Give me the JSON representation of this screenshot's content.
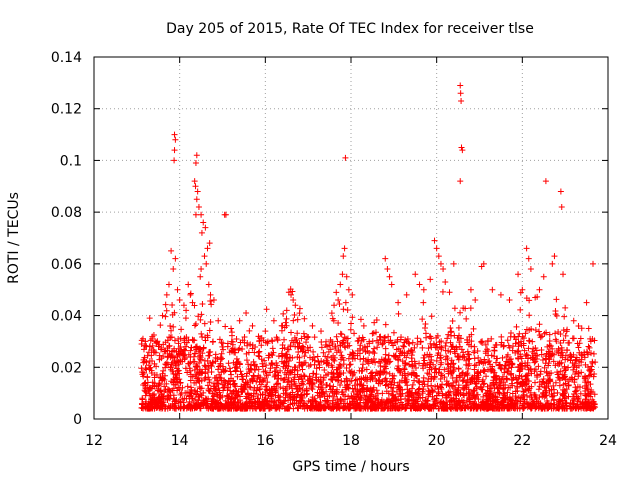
{
  "chart_data": {
    "type": "scatter",
    "title": "Day 205 of 2015, Rate Of TEC Index for receiver tlse",
    "xlabel": "GPS time / hours",
    "ylabel": "ROTI / TECUs",
    "xlim": [
      12,
      24
    ],
    "ylim": [
      0,
      0.14
    ],
    "xticks": [
      "12",
      "14",
      "16",
      "18",
      "20",
      "22",
      "24"
    ],
    "xtick_values": [
      12,
      14,
      16,
      18,
      20,
      22,
      24
    ],
    "yticks": [
      "0",
      "0.02",
      "0.04",
      "0.06",
      "0.08",
      "0.1",
      "0.12",
      "0.14"
    ],
    "ytick_values": [
      0,
      0.02,
      0.04,
      0.06,
      0.08,
      0.1,
      0.12,
      0.14
    ],
    "grid": true,
    "marker": "+",
    "color": "#ff0000",
    "x_range_of_data": [
      13.1,
      23.7
    ],
    "series": [
      {
        "name": "ROTI",
        "points": [
          [
            13.88,
            0.11
          ],
          [
            13.9,
            0.108
          ],
          [
            13.88,
            0.104
          ],
          [
            13.87,
            0.1
          ],
          [
            14.4,
            0.102
          ],
          [
            14.38,
            0.099
          ],
          [
            14.35,
            0.092
          ],
          [
            14.37,
            0.09
          ],
          [
            14.42,
            0.088
          ],
          [
            14.4,
            0.085
          ],
          [
            14.45,
            0.082
          ],
          [
            14.5,
            0.079
          ],
          [
            14.38,
            0.079
          ],
          [
            14.55,
            0.076
          ],
          [
            14.6,
            0.074
          ],
          [
            14.52,
            0.072
          ],
          [
            14.7,
            0.068
          ],
          [
            14.65,
            0.066
          ],
          [
            14.58,
            0.063
          ],
          [
            14.62,
            0.06
          ],
          [
            14.5,
            0.058
          ],
          [
            14.48,
            0.055
          ],
          [
            14.68,
            0.052
          ],
          [
            14.72,
            0.048
          ],
          [
            15.05,
            0.079
          ],
          [
            15.08,
            0.079
          ],
          [
            13.8,
            0.065
          ],
          [
            13.9,
            0.062
          ],
          [
            13.85,
            0.058
          ],
          [
            13.75,
            0.052
          ],
          [
            13.7,
            0.048
          ],
          [
            13.95,
            0.05
          ],
          [
            14.0,
            0.046
          ],
          [
            14.1,
            0.044
          ],
          [
            13.6,
            0.04
          ],
          [
            13.3,
            0.039
          ],
          [
            14.2,
            0.052
          ],
          [
            14.25,
            0.048
          ],
          [
            14.15,
            0.042
          ],
          [
            14.3,
            0.045
          ],
          [
            14.8,
            0.046
          ],
          [
            14.9,
            0.038
          ],
          [
            15.2,
            0.035
          ],
          [
            15.4,
            0.038
          ],
          [
            15.55,
            0.041
          ],
          [
            15.7,
            0.036
          ],
          [
            16.0,
            0.034
          ],
          [
            16.2,
            0.038
          ],
          [
            16.5,
            0.042
          ],
          [
            16.55,
            0.049
          ],
          [
            16.6,
            0.048
          ],
          [
            16.65,
            0.046
          ],
          [
            16.7,
            0.044
          ],
          [
            16.4,
            0.036
          ],
          [
            16.9,
            0.033
          ],
          [
            17.1,
            0.036
          ],
          [
            17.3,
            0.034
          ],
          [
            17.6,
            0.038
          ],
          [
            17.7,
            0.046
          ],
          [
            17.75,
            0.052
          ],
          [
            17.8,
            0.056
          ],
          [
            17.82,
            0.063
          ],
          [
            17.85,
            0.066
          ],
          [
            17.9,
            0.055
          ],
          [
            17.95,
            0.05
          ],
          [
            17.88,
            0.045
          ],
          [
            17.87,
            0.101
          ],
          [
            18.3,
            0.036
          ],
          [
            18.5,
            0.033
          ],
          [
            18.8,
            0.062
          ],
          [
            18.85,
            0.058
          ],
          [
            18.9,
            0.055
          ],
          [
            18.95,
            0.052
          ],
          [
            19.1,
            0.045
          ],
          [
            19.3,
            0.048
          ],
          [
            19.5,
            0.056
          ],
          [
            19.6,
            0.052
          ],
          [
            19.7,
            0.05
          ],
          [
            19.85,
            0.054
          ],
          [
            19.95,
            0.069
          ],
          [
            20.0,
            0.066
          ],
          [
            20.05,
            0.063
          ],
          [
            20.1,
            0.06
          ],
          [
            20.15,
            0.058
          ],
          [
            20.2,
            0.053
          ],
          [
            20.3,
            0.049
          ],
          [
            20.4,
            0.06
          ],
          [
            20.55,
            0.129
          ],
          [
            20.56,
            0.126
          ],
          [
            20.57,
            0.123
          ],
          [
            20.58,
            0.105
          ],
          [
            20.6,
            0.104
          ],
          [
            20.55,
            0.092
          ],
          [
            20.8,
            0.05
          ],
          [
            20.9,
            0.046
          ],
          [
            21.05,
            0.059
          ],
          [
            21.1,
            0.06
          ],
          [
            21.3,
            0.05
          ],
          [
            21.5,
            0.048
          ],
          [
            21.7,
            0.046
          ],
          [
            21.9,
            0.056
          ],
          [
            22.0,
            0.05
          ],
          [
            22.1,
            0.066
          ],
          [
            22.15,
            0.062
          ],
          [
            22.2,
            0.058
          ],
          [
            22.3,
            0.047
          ],
          [
            22.4,
            0.05
          ],
          [
            22.5,
            0.055
          ],
          [
            22.55,
            0.092
          ],
          [
            22.7,
            0.06
          ],
          [
            22.75,
            0.063
          ],
          [
            22.9,
            0.088
          ],
          [
            22.92,
            0.082
          ],
          [
            22.95,
            0.056
          ],
          [
            23.0,
            0.043
          ],
          [
            23.2,
            0.038
          ],
          [
            23.5,
            0.045
          ],
          [
            23.65,
            0.06
          ],
          [
            23.55,
            0.035
          ],
          [
            23.6,
            0.03
          ],
          [
            23.7,
            0.022
          ],
          [
            13.2,
            0.03
          ],
          [
            13.3,
            0.028
          ]
        ]
      }
    ]
  }
}
